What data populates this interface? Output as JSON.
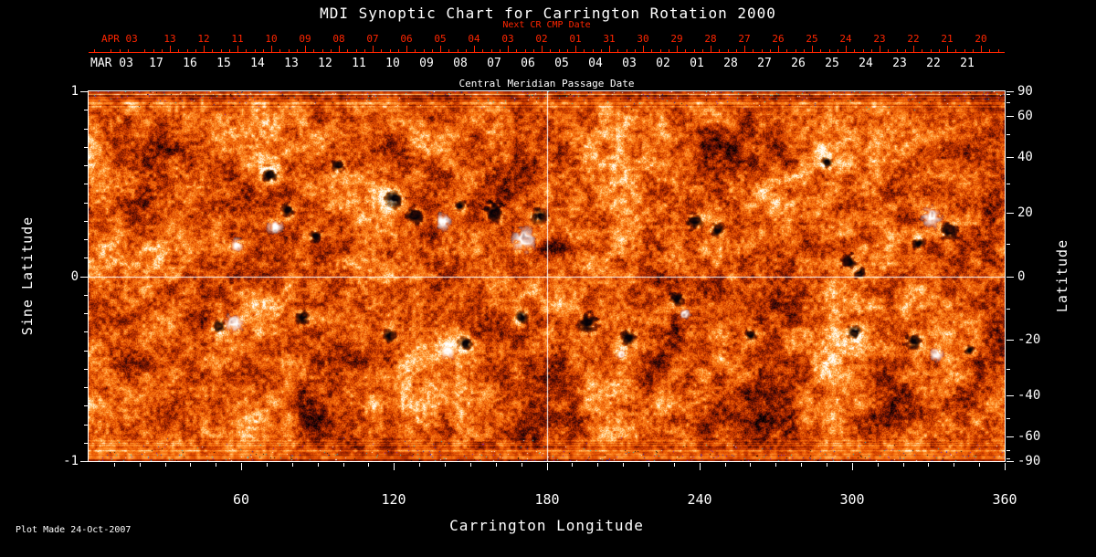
{
  "footer": {
    "plot_made": "Plot Made 24-Oct-2007"
  },
  "chart_data": {
    "type": "heatmap",
    "title": "MDI Synoptic Chart for Carrington Rotation 2000",
    "xlabel": "Carrington Longitude",
    "ylabel_left": "Sine Latitude",
    "ylabel_right": "Latitude",
    "xlim": [
      0,
      360
    ],
    "ylim_sine_latitude": [
      -1,
      1
    ],
    "x_major_ticks": [
      60,
      120,
      180,
      240,
      300,
      360
    ],
    "x_minor_step_deg": 10,
    "left_axis_ticks_sine": [
      1,
      0,
      -1
    ],
    "right_axis_ticks_deg": [
      90,
      60,
      40,
      20,
      0,
      -20,
      -40,
      -60,
      -90
    ],
    "right_axis_minor_ticks_deg": [
      80,
      70,
      50,
      30,
      10,
      -10,
      -30,
      -50,
      -70,
      -80
    ],
    "crosshair": {
      "longitude_deg": 180,
      "sine_latitude": 0
    },
    "top_axes": {
      "next_cr_label": "Next CR CMP Date",
      "axis_title": "Central Meridian Passage Date",
      "red_axis": {
        "month_label": "APR 03",
        "day_ticks": [
          "13",
          "12",
          "11",
          "10",
          "09",
          "08",
          "07",
          "06",
          "05",
          "04",
          "03",
          "02",
          "01",
          "31",
          "30",
          "29",
          "28",
          "27",
          "26",
          "25",
          "24",
          "23",
          "22",
          "21",
          "20"
        ]
      },
      "white_axis": {
        "month_label": "MAR 03",
        "day_ticks": [
          "17",
          "16",
          "15",
          "14",
          "13",
          "12",
          "11",
          "10",
          "09",
          "08",
          "07",
          "06",
          "05",
          "04",
          "03",
          "02",
          "01",
          "28",
          "27",
          "26",
          "25",
          "24",
          "23",
          "22",
          "21"
        ]
      }
    },
    "colors": {
      "background": "#000000",
      "axis": "#ffffff",
      "date_axis_red": "#ff2600",
      "negative_polarity": "#050208",
      "positive_polarity": "#ffffff",
      "palette_stops": [
        [
          0.0,
          "#000000"
        ],
        [
          0.1,
          "#2d060c"
        ],
        [
          0.22,
          "#641000"
        ],
        [
          0.35,
          "#a22500"
        ],
        [
          0.48,
          "#d84300"
        ],
        [
          0.6,
          "#f56a08"
        ],
        [
          0.72,
          "#ff8c26"
        ],
        [
          0.84,
          "#ffbf6a"
        ],
        [
          0.93,
          "#ffe7b8"
        ],
        [
          1.0,
          "#ffffff"
        ]
      ],
      "pole_speckles": [
        "#1b2bbf",
        "#7a22cc",
        "#19c7d4",
        "#000000",
        "#ffffff"
      ]
    },
    "magnetogram": {
      "description": "Speckled orange-red solar magnetic field synoptic map; black blobs = negative polarity active regions, white blobs = positive polarity, bright yellow plage around them; noisy horizontal banding near poles",
      "active_regions": [
        {
          "lon": 71,
          "slat": 0.55,
          "r": 9,
          "pol": -1
        },
        {
          "lon": 58,
          "slat": 0.17,
          "r": 7,
          "pol": 1
        },
        {
          "lon": 73,
          "slat": 0.27,
          "r": 8,
          "pol": 1
        },
        {
          "lon": 78,
          "slat": 0.36,
          "r": 8,
          "pol": -1
        },
        {
          "lon": 89,
          "slat": 0.22,
          "r": 7,
          "pol": -1
        },
        {
          "lon": 98,
          "slat": 0.6,
          "r": 7,
          "pol": -1
        },
        {
          "lon": 120,
          "slat": 0.42,
          "r": 11,
          "pol": -1
        },
        {
          "lon": 128,
          "slat": 0.33,
          "r": 10,
          "pol": -1
        },
        {
          "lon": 139,
          "slat": 0.3,
          "r": 9,
          "pol": 1
        },
        {
          "lon": 146,
          "slat": 0.38,
          "r": 7,
          "pol": -1
        },
        {
          "lon": 159,
          "slat": 0.35,
          "r": 11,
          "pol": -1
        },
        {
          "lon": 171,
          "slat": 0.2,
          "r": 13,
          "pol": 1
        },
        {
          "lon": 177,
          "slat": 0.33,
          "r": 9,
          "pol": -1
        },
        {
          "lon": 51,
          "slat": -0.27,
          "r": 7,
          "pol": -1
        },
        {
          "lon": 57,
          "slat": -0.25,
          "r": 10,
          "pol": 1
        },
        {
          "lon": 84,
          "slat": -0.22,
          "r": 8,
          "pol": -1
        },
        {
          "lon": 118,
          "slat": -0.32,
          "r": 7,
          "pol": -1
        },
        {
          "lon": 141,
          "slat": -0.4,
          "r": 9,
          "pol": 1
        },
        {
          "lon": 148,
          "slat": -0.36,
          "r": 8,
          "pol": -1
        },
        {
          "lon": 170,
          "slat": -0.22,
          "r": 7,
          "pol": -1
        },
        {
          "lon": 196,
          "slat": -0.25,
          "r": 11,
          "pol": -1
        },
        {
          "lon": 212,
          "slat": -0.33,
          "r": 9,
          "pol": -1
        },
        {
          "lon": 209,
          "slat": -0.42,
          "r": 6,
          "pol": 1
        },
        {
          "lon": 231,
          "slat": -0.12,
          "r": 8,
          "pol": -1
        },
        {
          "lon": 234,
          "slat": -0.2,
          "r": 6,
          "pol": 1
        },
        {
          "lon": 238,
          "slat": 0.3,
          "r": 9,
          "pol": -1
        },
        {
          "lon": 247,
          "slat": 0.25,
          "r": 8,
          "pol": -1
        },
        {
          "lon": 260,
          "slat": -0.32,
          "r": 7,
          "pol": -1
        },
        {
          "lon": 290,
          "slat": 0.62,
          "r": 6,
          "pol": -1
        },
        {
          "lon": 299,
          "slat": 0.08,
          "r": 9,
          "pol": -1
        },
        {
          "lon": 303,
          "slat": 0.02,
          "r": 7,
          "pol": -1
        },
        {
          "lon": 331,
          "slat": 0.32,
          "r": 11,
          "pol": 1
        },
        {
          "lon": 338,
          "slat": 0.25,
          "r": 10,
          "pol": -1
        },
        {
          "lon": 326,
          "slat": 0.18,
          "r": 7,
          "pol": -1
        },
        {
          "lon": 301,
          "slat": -0.3,
          "r": 8,
          "pol": -1
        },
        {
          "lon": 324,
          "slat": -0.35,
          "r": 9,
          "pol": -1
        },
        {
          "lon": 333,
          "slat": -0.42,
          "r": 7,
          "pol": 1
        },
        {
          "lon": 346,
          "slat": -0.4,
          "r": 6,
          "pol": -1
        }
      ]
    }
  }
}
